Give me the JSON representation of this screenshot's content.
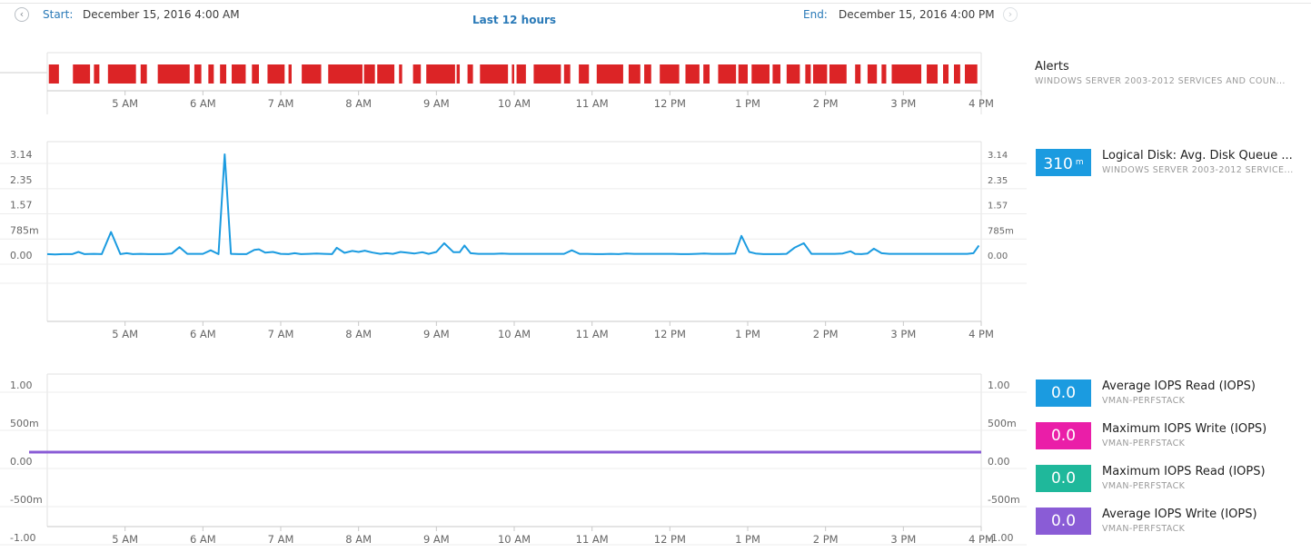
{
  "header": {
    "start_label": "Start:",
    "start_value": "December 15, 2016 4:00 AM",
    "range_label": "Last 12 hours",
    "end_label": "End:",
    "end_value": "December 15, 2016 4:00 PM",
    "prev_glyph": "‹",
    "next_glyph": "›"
  },
  "x_ticks": [
    "5 AM",
    "6 AM",
    "7 AM",
    "8 AM",
    "9 AM",
    "10 AM",
    "11 AM",
    "12 PM",
    "1 PM",
    "2 PM",
    "3 PM",
    "4 PM"
  ],
  "alerts": {
    "title": "Alerts",
    "subtitle": "WINDOWS SERVER 2003-2012 SERVICES AND COUN...",
    "color": "#dc2426",
    "segments": [
      [
        4.02,
        4.15
      ],
      [
        4.33,
        4.55
      ],
      [
        4.6,
        4.67
      ],
      [
        4.78,
        5.14
      ],
      [
        5.2,
        5.28
      ],
      [
        5.42,
        5.83
      ],
      [
        5.89,
        5.98
      ],
      [
        6.07,
        6.14
      ],
      [
        6.22,
        6.3
      ],
      [
        6.37,
        6.55
      ],
      [
        6.63,
        6.72
      ],
      [
        6.83,
        7.05
      ],
      [
        7.1,
        7.14
      ],
      [
        7.27,
        7.52
      ],
      [
        7.61,
        8.05
      ],
      [
        8.07,
        8.21
      ],
      [
        8.24,
        8.46
      ],
      [
        8.52,
        8.56
      ],
      [
        8.7,
        8.8
      ],
      [
        8.87,
        9.24
      ],
      [
        9.26,
        9.3
      ],
      [
        9.4,
        9.47
      ],
      [
        9.56,
        9.92
      ],
      [
        9.97,
        10.0
      ],
      [
        10.03,
        10.15
      ],
      [
        10.25,
        10.6
      ],
      [
        10.64,
        10.72
      ],
      [
        10.83,
        10.96
      ],
      [
        11.06,
        11.4
      ],
      [
        11.47,
        11.62
      ],
      [
        11.67,
        11.76
      ],
      [
        11.87,
        12.12
      ],
      [
        12.2,
        12.38
      ],
      [
        12.43,
        12.51
      ],
      [
        12.62,
        12.85
      ],
      [
        12.88,
        13.0
      ],
      [
        13.05,
        13.28
      ],
      [
        13.32,
        13.42
      ],
      [
        13.5,
        13.67
      ],
      [
        13.74,
        13.81
      ],
      [
        13.84,
        14.02
      ],
      [
        14.05,
        14.27
      ],
      [
        14.38,
        14.45
      ],
      [
        14.54,
        14.66
      ],
      [
        14.72,
        14.78
      ],
      [
        14.85,
        15.23
      ],
      [
        15.3,
        15.44
      ],
      [
        15.51,
        15.58
      ],
      [
        15.65,
        15.73
      ],
      [
        15.79,
        15.95
      ]
    ]
  },
  "disk_queue": {
    "title": "Logical Disk: Avg. Disk Queue ...",
    "subtitle": "WINDOWS SERVER 2003-2012 SERVICE...",
    "current_value": "310",
    "current_unit": "m",
    "color": "#1b9be0",
    "y_ticks": [
      "3.14",
      "2.35",
      "1.57",
      "785m",
      "0.00"
    ],
    "y_tick_values": [
      3.14,
      2.35,
      1.57,
      0.785,
      0
    ],
    "ylim": [
      0,
      3.14
    ],
    "points": [
      [
        4.0,
        0.03
      ],
      [
        4.1,
        0.02
      ],
      [
        4.2,
        0.03
      ],
      [
        4.32,
        0.03
      ],
      [
        4.4,
        0.1
      ],
      [
        4.48,
        0.03
      ],
      [
        4.6,
        0.04
      ],
      [
        4.7,
        0.03
      ],
      [
        4.82,
        0.72
      ],
      [
        4.94,
        0.03
      ],
      [
        5.02,
        0.06
      ],
      [
        5.1,
        0.03
      ],
      [
        5.2,
        0.04
      ],
      [
        5.3,
        0.03
      ],
      [
        5.4,
        0.03
      ],
      [
        5.5,
        0.03
      ],
      [
        5.6,
        0.05
      ],
      [
        5.7,
        0.25
      ],
      [
        5.8,
        0.04
      ],
      [
        5.9,
        0.04
      ],
      [
        6.0,
        0.04
      ],
      [
        6.1,
        0.15
      ],
      [
        6.2,
        0.03
      ],
      [
        6.28,
        3.14
      ],
      [
        6.36,
        0.04
      ],
      [
        6.46,
        0.03
      ],
      [
        6.56,
        0.03
      ],
      [
        6.66,
        0.16
      ],
      [
        6.72,
        0.18
      ],
      [
        6.8,
        0.08
      ],
      [
        6.9,
        0.1
      ],
      [
        7.0,
        0.04
      ],
      [
        7.1,
        0.03
      ],
      [
        7.18,
        0.06
      ],
      [
        7.26,
        0.03
      ],
      [
        7.36,
        0.04
      ],
      [
        7.46,
        0.05
      ],
      [
        7.56,
        0.04
      ],
      [
        7.66,
        0.03
      ],
      [
        7.72,
        0.23
      ],
      [
        7.82,
        0.07
      ],
      [
        7.92,
        0.13
      ],
      [
        8.0,
        0.1
      ],
      [
        8.08,
        0.14
      ],
      [
        8.18,
        0.08
      ],
      [
        8.28,
        0.04
      ],
      [
        8.36,
        0.06
      ],
      [
        8.44,
        0.04
      ],
      [
        8.54,
        0.1
      ],
      [
        8.62,
        0.08
      ],
      [
        8.72,
        0.05
      ],
      [
        8.82,
        0.09
      ],
      [
        8.9,
        0.04
      ],
      [
        9.0,
        0.1
      ],
      [
        9.1,
        0.37
      ],
      [
        9.22,
        0.09
      ],
      [
        9.3,
        0.09
      ],
      [
        9.36,
        0.3
      ],
      [
        9.44,
        0.06
      ],
      [
        9.54,
        0.04
      ],
      [
        9.64,
        0.04
      ],
      [
        9.74,
        0.04
      ],
      [
        9.84,
        0.05
      ],
      [
        9.94,
        0.04
      ],
      [
        10.04,
        0.04
      ],
      [
        10.14,
        0.04
      ],
      [
        10.24,
        0.04
      ],
      [
        10.34,
        0.04
      ],
      [
        10.44,
        0.04
      ],
      [
        10.54,
        0.04
      ],
      [
        10.64,
        0.04
      ],
      [
        10.74,
        0.15
      ],
      [
        10.84,
        0.04
      ],
      [
        10.94,
        0.04
      ],
      [
        11.04,
        0.03
      ],
      [
        11.14,
        0.03
      ],
      [
        11.24,
        0.04
      ],
      [
        11.34,
        0.03
      ],
      [
        11.44,
        0.05
      ],
      [
        11.54,
        0.04
      ],
      [
        11.64,
        0.04
      ],
      [
        11.74,
        0.04
      ],
      [
        11.84,
        0.04
      ],
      [
        11.94,
        0.04
      ],
      [
        12.04,
        0.04
      ],
      [
        12.14,
        0.03
      ],
      [
        12.24,
        0.03
      ],
      [
        12.34,
        0.04
      ],
      [
        12.44,
        0.05
      ],
      [
        12.54,
        0.04
      ],
      [
        12.64,
        0.04
      ],
      [
        12.74,
        0.04
      ],
      [
        12.84,
        0.05
      ],
      [
        12.92,
        0.6
      ],
      [
        13.02,
        0.1
      ],
      [
        13.1,
        0.05
      ],
      [
        13.2,
        0.03
      ],
      [
        13.3,
        0.03
      ],
      [
        13.4,
        0.03
      ],
      [
        13.5,
        0.04
      ],
      [
        13.6,
        0.23
      ],
      [
        13.72,
        0.37
      ],
      [
        13.82,
        0.04
      ],
      [
        13.92,
        0.04
      ],
      [
        14.02,
        0.04
      ],
      [
        14.12,
        0.04
      ],
      [
        14.22,
        0.05
      ],
      [
        14.32,
        0.12
      ],
      [
        14.38,
        0.04
      ],
      [
        14.46,
        0.03
      ],
      [
        14.54,
        0.05
      ],
      [
        14.62,
        0.2
      ],
      [
        14.72,
        0.06
      ],
      [
        14.82,
        0.04
      ],
      [
        14.92,
        0.04
      ],
      [
        15.02,
        0.04
      ],
      [
        15.12,
        0.04
      ],
      [
        15.22,
        0.04
      ],
      [
        15.32,
        0.04
      ],
      [
        15.42,
        0.04
      ],
      [
        15.52,
        0.04
      ],
      [
        15.62,
        0.04
      ],
      [
        15.72,
        0.04
      ],
      [
        15.82,
        0.04
      ],
      [
        15.9,
        0.06
      ],
      [
        15.97,
        0.3
      ]
    ]
  },
  "iops": {
    "y_ticks": [
      "1.00",
      "500m",
      "0.00",
      "-500m",
      "-1.00"
    ],
    "y_tick_values": [
      1,
      0.5,
      0,
      -0.5,
      -1
    ],
    "ylim": [
      -1,
      1
    ],
    "line_color": "#8a5cd6",
    "series": [
      {
        "title": "Average IOPS Read (IOPS)",
        "subtitle": "VMAN-PERFSTACK",
        "value": "0.0",
        "color": "#1b9be0"
      },
      {
        "title": "Maximum IOPS Write (IOPS)",
        "subtitle": "VMAN-PERFSTACK",
        "value": "0.0",
        "color": "#ea1ea8"
      },
      {
        "title": "Maximum IOPS Read (IOPS)",
        "subtitle": "VMAN-PERFSTACK",
        "value": "0.0",
        "color": "#1fb89b"
      },
      {
        "title": "Average IOPS Write (IOPS)",
        "subtitle": "VMAN-PERFSTACK",
        "value": "0.0",
        "color": "#8a5cd6"
      }
    ]
  },
  "chart_data": [
    {
      "type": "bar",
      "title": "Alerts",
      "x_range": [
        "4 AM",
        "4 PM"
      ],
      "description_note": "",
      "grid": false
    },
    {
      "type": "line",
      "title": "Logical Disk: Avg. Disk Queue ...",
      "ylim": [
        0,
        3.14
      ],
      "yticks": [
        "3.14",
        "2.35",
        "1.57",
        "785m",
        "0.00"
      ],
      "xticks": [
        "5 AM",
        "6 AM",
        "7 AM",
        "8 AM",
        "9 AM",
        "10 AM",
        "11 AM",
        "12 PM",
        "1 PM",
        "2 PM",
        "3 PM",
        "4 PM"
      ],
      "grid": true
    },
    {
      "type": "line",
      "ylim": [
        -1,
        1
      ],
      "yticks": [
        "1.00",
        "500m",
        "0.00",
        "-500m",
        "-1.00"
      ],
      "xticks": [
        "5 AM",
        "6 AM",
        "7 AM",
        "8 AM",
        "9 AM",
        "10 AM",
        "11 AM",
        "12 PM",
        "1 PM",
        "2 PM",
        "3 PM",
        "4 PM"
      ],
      "series": [
        {
          "name": "Average IOPS Read (IOPS)",
          "values": [
            0,
            0
          ]
        },
        {
          "name": "Maximum IOPS Write (IOPS)",
          "values": [
            0,
            0
          ]
        },
        {
          "name": "Maximum IOPS Read (IOPS)",
          "values": [
            0,
            0
          ]
        },
        {
          "name": "Average IOPS Write (IOPS)",
          "values": [
            0,
            0
          ]
        }
      ],
      "grid": true
    }
  ]
}
